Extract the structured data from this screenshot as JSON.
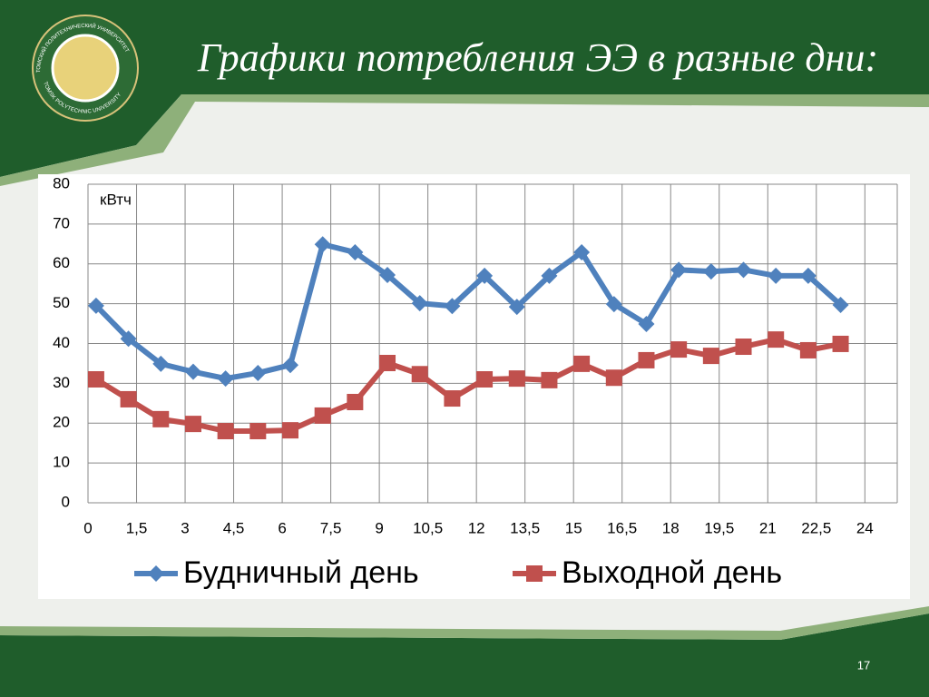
{
  "logo": {
    "text_top": "ТОМСКИЙ ПОЛИТЕХНИЧЕСКИЙ УНИВЕРСИТЕТ",
    "text_bottom": "TOMSK POLYTECHNIC UNIVERSITY"
  },
  "slide_number": "17",
  "chart_data": {
    "type": "line",
    "title": "Графики потребления  ЭЭ в разные дни:",
    "y_unit_label": "кВтч",
    "x": [
      0.25,
      1.25,
      2.25,
      3.25,
      4.25,
      5.25,
      6.25,
      7.25,
      8.25,
      9.25,
      10.25,
      11.25,
      12.25,
      13.25,
      14.25,
      15.25,
      16.25,
      17.25,
      18.25,
      19.25,
      20.25,
      21.25,
      22.25,
      23.25
    ],
    "series": [
      {
        "name": "Будничный день",
        "color": "#4f81bd",
        "marker": "diamond",
        "values": [
          49.5,
          41.2,
          34.9,
          32.9,
          31.2,
          32.6,
          34.6,
          64.9,
          62.9,
          57.2,
          50.1,
          49.4,
          57,
          49.2,
          57,
          62.9,
          49.9,
          44.9,
          58.5,
          58.1,
          58.5,
          57,
          57,
          49.7
        ]
      },
      {
        "name": "Выходной день",
        "color": "#c0504d",
        "marker": "square",
        "values": [
          31,
          26,
          21,
          19.8,
          18,
          18,
          18.2,
          21.9,
          25.3,
          35.1,
          32.3,
          26.2,
          31,
          31.2,
          30.8,
          34.9,
          31.4,
          35.8,
          38.5,
          36.9,
          39.2,
          41,
          38.3,
          39.9
        ]
      }
    ],
    "xlim": [
      0,
      25
    ],
    "xticks": [
      0,
      {
        "value": 1.5,
        "label": "1,5"
      },
      3,
      {
        "value": 4.5,
        "label": "4,5"
      },
      6,
      {
        "value": 7.5,
        "label": "7,5"
      },
      9,
      {
        "value": 10.5,
        "label": "10,5"
      },
      12,
      {
        "value": 13.5,
        "label": "13,5"
      },
      15,
      {
        "value": 16.5,
        "label": "16,5"
      },
      18,
      {
        "value": 19.5,
        "label": "19,5"
      },
      21,
      {
        "value": 22.5,
        "label": "22,5"
      },
      24
    ],
    "ylim": [
      0,
      80
    ],
    "yticks": [
      0,
      10,
      20,
      30,
      40,
      50,
      60,
      70,
      80
    ],
    "grid": true,
    "legend": "bottom"
  }
}
